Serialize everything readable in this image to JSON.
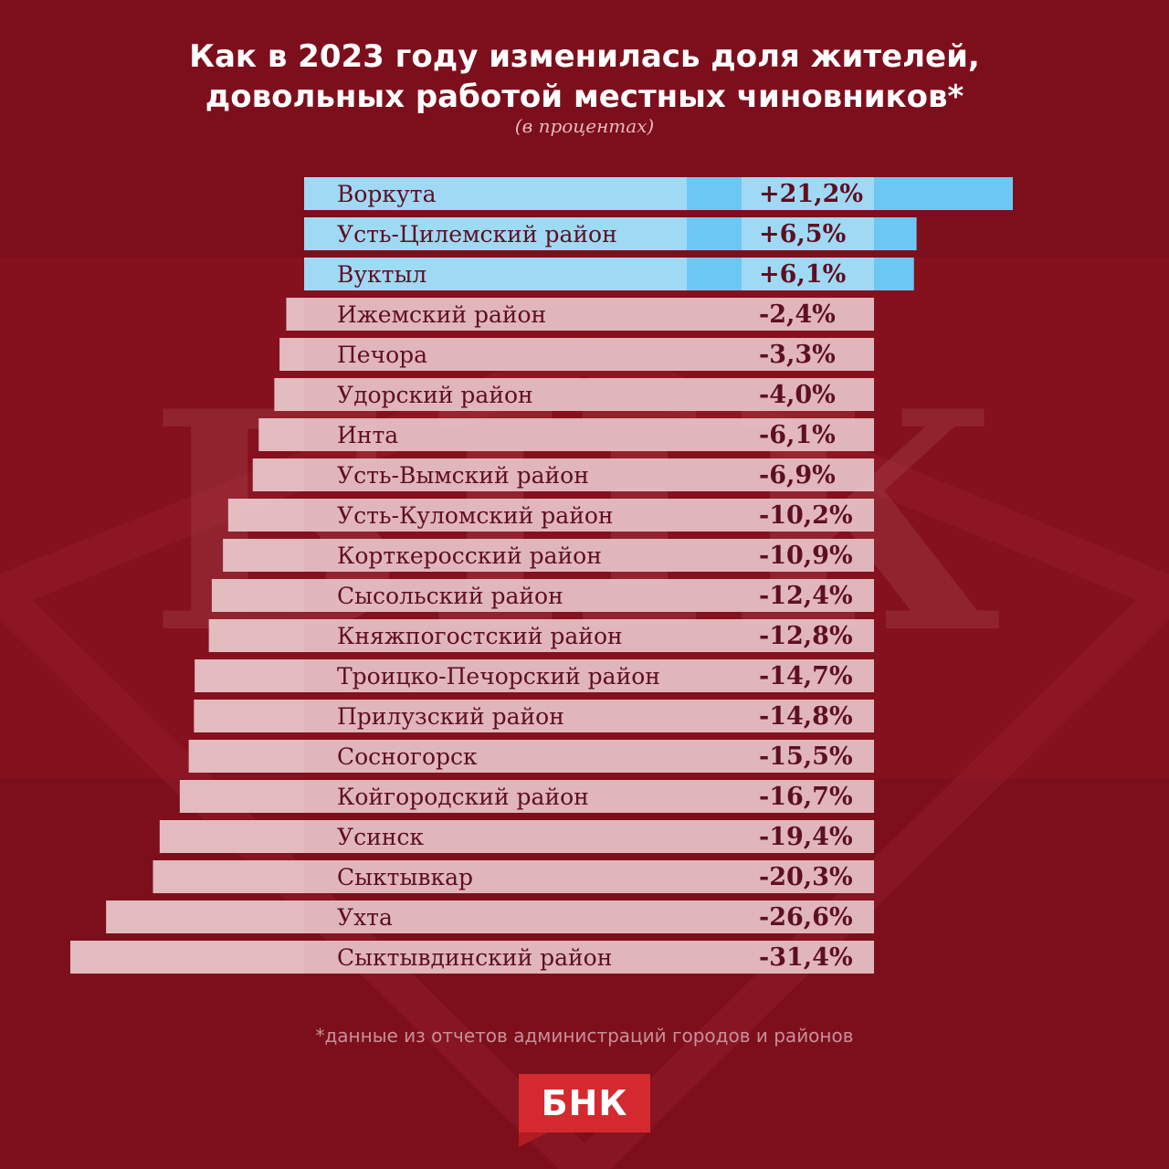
{
  "header": {
    "title_line1": "Как в 2023 году изменилась доля жителей,",
    "title_line2": "довольных работой местных чиновников*",
    "subtitle": "(в процентах)"
  },
  "footnote": "*данные из отчетов администраций городов и районов",
  "logo": {
    "text": "БНК",
    "watermark": "БНК"
  },
  "colors": {
    "background": "#7d0f1c",
    "positive": "#6cc8f2",
    "positive_label": "#a9dcf5",
    "negative": "#e8c4c8",
    "text": "#5e0f22",
    "logo": "#d42a2f"
  },
  "chart_data": {
    "type": "bar",
    "orientation": "horizontal",
    "categories": [
      "Воркута",
      "Усть-Цилемский район",
      "Вуктыл",
      "Ижемский район",
      "Печора",
      "Удорский район",
      "Инта",
      "Усть-Вымский район",
      "Усть-Куломский район",
      "Корткеросский район",
      "Сысольский район",
      "Княжпогостский район",
      "Троицко-Печорский район",
      "Прилузский район",
      "Сосногорск",
      "Койгородский район",
      "Усинск",
      "Сыктывкар",
      "Ухта",
      "Сыктывдинский район"
    ],
    "values": [
      21.2,
      6.5,
      6.1,
      -2.4,
      -3.3,
      -4.0,
      -6.1,
      -6.9,
      -10.2,
      -10.9,
      -12.4,
      -12.8,
      -14.7,
      -14.8,
      -15.5,
      -16.7,
      -19.4,
      -20.3,
      -26.6,
      -31.4
    ],
    "value_labels": [
      "+21,2%",
      "+6,5%",
      "+6,1%",
      "-2,4%",
      "-3,3%",
      "-4,0%",
      "-6,1%",
      "-6,9%",
      "-10,2%",
      "-10,9%",
      "-12,4%",
      "-12,8%",
      "-14,7%",
      "-14,8%",
      "-15,5%",
      "-16,7%",
      "-19,4%",
      "-20,3%",
      "-26,6%",
      "-31,4%"
    ],
    "title": "Как в 2023 году изменилась доля жителей, довольных работой местных чиновников*",
    "subtitle": "(в процентах)",
    "grid": false,
    "legend": "none"
  }
}
